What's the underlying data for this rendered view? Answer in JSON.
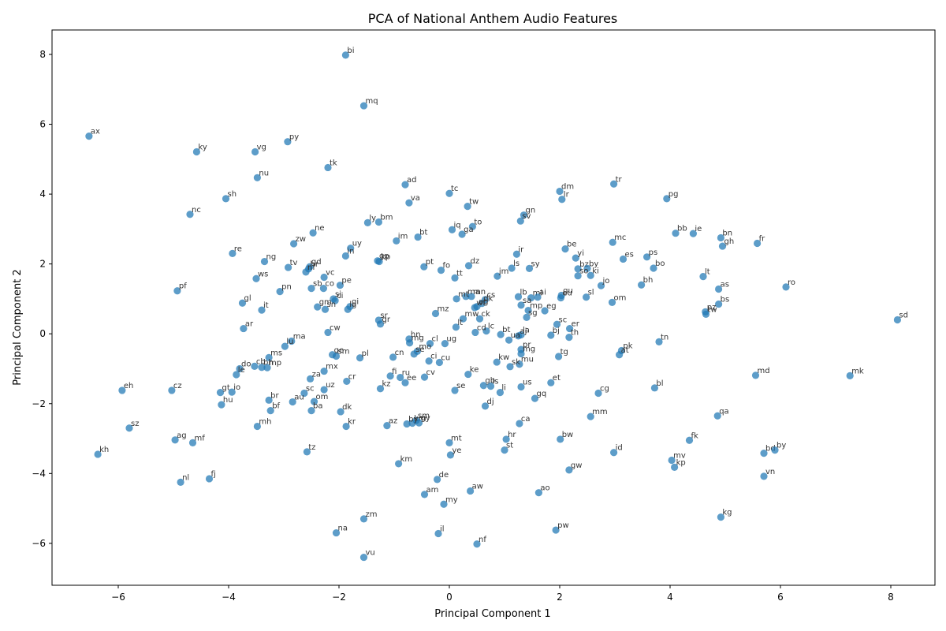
{
  "chart_data": {
    "type": "scatter",
    "title": "PCA of National Anthem Audio Features",
    "xlabel": "Principal Component 1",
    "ylabel": "Principal Component 2",
    "xlim": [
      -7.2,
      8.8
    ],
    "ylim": [
      -7.2,
      8.7
    ],
    "xticks": [
      -6,
      -4,
      -2,
      0,
      2,
      4,
      6,
      8
    ],
    "yticks": [
      -6,
      -4,
      -2,
      0,
      2,
      4,
      6,
      8
    ],
    "grid": false,
    "point_color": "#1f77b4",
    "points": [
      {
        "label": "bi",
        "x": -1.88,
        "y": 7.98
      },
      {
        "label": "mq",
        "x": -1.55,
        "y": 6.53
      },
      {
        "label": "ax",
        "x": -6.53,
        "y": 5.66
      },
      {
        "label": "ky",
        "x": -4.58,
        "y": 5.21
      },
      {
        "label": "vg",
        "x": -3.52,
        "y": 5.21
      },
      {
        "label": "py",
        "x": -2.93,
        "y": 5.5
      },
      {
        "label": "tk",
        "x": -2.2,
        "y": 4.76
      },
      {
        "label": "nu",
        "x": -3.48,
        "y": 4.47
      },
      {
        "label": "ad",
        "x": -0.8,
        "y": 4.27
      },
      {
        "label": "tc",
        "x": 0,
        "y": 4.02
      },
      {
        "label": "dm",
        "x": 2,
        "y": 4.08
      },
      {
        "label": "tr",
        "x": 2.98,
        "y": 4.29
      },
      {
        "label": "pg",
        "x": 3.94,
        "y": 3.87
      },
      {
        "label": "sh",
        "x": -4.05,
        "y": 3.87
      },
      {
        "label": "nc",
        "x": -4.7,
        "y": 3.42
      },
      {
        "label": "va",
        "x": -0.73,
        "y": 3.75
      },
      {
        "label": "tw",
        "x": 0.33,
        "y": 3.65
      },
      {
        "label": "lr",
        "x": 2.04,
        "y": 3.85
      },
      {
        "label": "gn",
        "x": 1.35,
        "y": 3.4
      },
      {
        "label": "sv",
        "x": 1.29,
        "y": 3.23
      },
      {
        "label": "ly",
        "x": -1.48,
        "y": 3.18
      },
      {
        "label": "bm",
        "x": -1.28,
        "y": 3.2
      },
      {
        "label": "iq",
        "x": 0.05,
        "y": 2.98
      },
      {
        "label": "to",
        "x": 0.42,
        "y": 3.07
      },
      {
        "label": "ga",
        "x": 0.23,
        "y": 2.85
      },
      {
        "label": "ne",
        "x": -2.47,
        "y": 2.89
      },
      {
        "label": "bt",
        "x": -0.57,
        "y": 2.77
      },
      {
        "label": "im",
        "x": -0.96,
        "y": 2.66
      },
      {
        "label": "bb",
        "x": 4.1,
        "y": 2.88
      },
      {
        "label": "ie",
        "x": 4.42,
        "y": 2.87
      },
      {
        "label": "bn",
        "x": 4.92,
        "y": 2.75
      },
      {
        "label": "gh",
        "x": 4.95,
        "y": 2.51
      },
      {
        "label": "fr",
        "x": 5.58,
        "y": 2.59
      },
      {
        "label": "mc",
        "x": 2.96,
        "y": 2.62
      },
      {
        "label": "zw",
        "x": -2.82,
        "y": 2.58
      },
      {
        "label": "uy",
        "x": -1.79,
        "y": 2.45
      },
      {
        "label": "be",
        "x": 2.1,
        "y": 2.43
      },
      {
        "label": "re",
        "x": -3.93,
        "y": 2.3
      },
      {
        "label": "ir",
        "x": 1.22,
        "y": 2.28
      },
      {
        "label": "in",
        "x": -1.88,
        "y": 2.23
      },
      {
        "label": "yi",
        "x": 2.29,
        "y": 2.17
      },
      {
        "label": "es",
        "x": 3.15,
        "y": 2.14
      },
      {
        "label": "ps",
        "x": 3.58,
        "y": 2.2
      },
      {
        "label": "ng",
        "x": -3.35,
        "y": 2.07
      },
      {
        "label": "kp",
        "x": -1.27,
        "y": 2.07
      },
      {
        "label": "gp",
        "x": -1.3,
        "y": 2.09
      },
      {
        "label": "pt",
        "x": -0.46,
        "y": 1.92
      },
      {
        "label": "dz",
        "x": 0.35,
        "y": 1.95
      },
      {
        "label": "gd",
        "x": -2.53,
        "y": 1.92
      },
      {
        "label": "tv",
        "x": -2.92,
        "y": 1.9
      },
      {
        "label": "hr",
        "x": -2.55,
        "y": 1.86
      },
      {
        "label": "fo",
        "x": -0.15,
        "y": 1.82
      },
      {
        "label": "ls",
        "x": 1.13,
        "y": 1.88
      },
      {
        "label": "sy",
        "x": 1.45,
        "y": 1.87
      },
      {
        "label": "bz",
        "x": 2.33,
        "y": 1.86
      },
      {
        "label": "by",
        "x": 2.5,
        "y": 1.87
      },
      {
        "label": "bo",
        "x": 3.7,
        "y": 1.88
      },
      {
        "label": "nf",
        "x": -2.6,
        "y": 1.77
      },
      {
        "label": "jm",
        "x": 0.87,
        "y": 1.65
      },
      {
        "label": "so",
        "x": 2.33,
        "y": 1.66
      },
      {
        "label": "ki",
        "x": 2.56,
        "y": 1.67
      },
      {
        "label": "vc",
        "x": -2.27,
        "y": 1.62
      },
      {
        "label": "tt",
        "x": 0.1,
        "y": 1.6
      },
      {
        "label": "ws",
        "x": -3.5,
        "y": 1.58
      },
      {
        "label": "lt",
        "x": 4.6,
        "y": 1.64
      },
      {
        "label": "bh",
        "x": 3.48,
        "y": 1.4
      },
      {
        "label": "jo",
        "x": 2.75,
        "y": 1.38
      },
      {
        "label": "pe",
        "x": -1.98,
        "y": 1.39
      },
      {
        "label": "ro",
        "x": 6.1,
        "y": 1.34
      },
      {
        "label": "sb",
        "x": -2.5,
        "y": 1.3
      },
      {
        "label": "co",
        "x": -2.28,
        "y": 1.3
      },
      {
        "label": "as",
        "x": 4.88,
        "y": 1.28
      },
      {
        "label": "pf",
        "x": -4.93,
        "y": 1.23
      },
      {
        "label": "pn",
        "x": -3.07,
        "y": 1.21
      },
      {
        "label": "mn",
        "x": 0.4,
        "y": 1.07
      },
      {
        "label": "ma",
        "x": 0.3,
        "y": 1.07
      },
      {
        "label": "lb",
        "x": 1.25,
        "y": 1.06
      },
      {
        "label": "gu",
        "x": 2.03,
        "y": 1.1
      },
      {
        "label": "eu",
        "x": 2.02,
        "y": 1.03
      },
      {
        "label": "sl",
        "x": 2.48,
        "y": 1.05
      },
      {
        "label": "mt",
        "x": 0.13,
        "y": 1
      },
      {
        "label": "ml",
        "x": 1.48,
        "y": 1.03
      },
      {
        "label": "ai",
        "x": 1.6,
        "y": 1.05
      },
      {
        "label": "sj",
        "x": -2.1,
        "y": 1
      },
      {
        "label": "ci",
        "x": -2.07,
        "y": 0.95
      },
      {
        "label": "cs",
        "x": 0.65,
        "y": 0.98
      },
      {
        "label": "om",
        "x": 2.95,
        "y": 0.9
      },
      {
        "label": "gl",
        "x": -3.75,
        "y": 0.88
      },
      {
        "label": "bs",
        "x": 4.88,
        "y": 0.85
      },
      {
        "label": "dk",
        "x": 0.59,
        "y": 0.87
      },
      {
        "label": "ag",
        "x": 0.5,
        "y": 0.78
      },
      {
        "label": "wf",
        "x": 0.46,
        "y": 0.75
      },
      {
        "label": "sa",
        "x": 1.3,
        "y": 0.82
      },
      {
        "label": "gm",
        "x": -2.39,
        "y": 0.77
      },
      {
        "label": "gi",
        "x": -1.8,
        "y": 0.78
      },
      {
        "label": "sn",
        "x": -2.25,
        "y": 0.7
      },
      {
        "label": "lg",
        "x": -1.84,
        "y": 0.7
      },
      {
        "label": "it",
        "x": -3.4,
        "y": 0.68
      },
      {
        "label": "mp",
        "x": 1.43,
        "y": 0.67
      },
      {
        "label": "eg",
        "x": 1.73,
        "y": 0.66
      },
      {
        "label": "pz",
        "x": 4.64,
        "y": 0.63
      },
      {
        "label": "tw2",
        "x": 4.65,
        "y": 0.56
      },
      {
        "label": "mz",
        "x": -0.25,
        "y": 0.58
      },
      {
        "label": "sg",
        "x": 1.4,
        "y": 0.47
      },
      {
        "label": "mw",
        "x": 0.25,
        "y": 0.43
      },
      {
        "label": "ck",
        "x": 0.55,
        "y": 0.43
      },
      {
        "label": "sd",
        "x": 8.12,
        "y": 0.4
      },
      {
        "label": "sr",
        "x": -1.28,
        "y": 0.39
      },
      {
        "label": "gr",
        "x": -1.25,
        "y": 0.28
      },
      {
        "label": "sc",
        "x": 1.95,
        "y": 0.27
      },
      {
        "label": "lt2",
        "x": 0.12,
        "y": 0.19
      },
      {
        "label": "ar",
        "x": -3.73,
        "y": 0.15
      },
      {
        "label": "er",
        "x": 2.18,
        "y": 0.15
      },
      {
        "label": "lc",
        "x": 0.67,
        "y": 0.08
      },
      {
        "label": "cw",
        "x": -2.2,
        "y": 0.04
      },
      {
        "label": "cd",
        "x": 0.47,
        "y": 0.04
      },
      {
        "label": "bt2",
        "x": 0.93,
        "y": -0.02
      },
      {
        "label": "la",
        "x": 1.3,
        "y": -0.03
      },
      {
        "label": "aj",
        "x": 1.25,
        "y": -0.06
      },
      {
        "label": "bj",
        "x": 1.84,
        "y": -0.04
      },
      {
        "label": "th",
        "x": 2.17,
        "y": -0.1
      },
      {
        "label": "ua",
        "x": 1.08,
        "y": -0.18
      },
      {
        "label": "hn",
        "x": -0.73,
        "y": -0.15
      },
      {
        "label": "tn",
        "x": 3.8,
        "y": -0.23
      },
      {
        "label": "ma2",
        "x": -2.86,
        "y": -0.21
      },
      {
        "label": "mg",
        "x": -0.72,
        "y": -0.26
      },
      {
        "label": "cl",
        "x": -0.35,
        "y": -0.28
      },
      {
        "label": "ug",
        "x": -0.08,
        "y": -0.28
      },
      {
        "label": "lu",
        "x": -2.98,
        "y": -0.36
      },
      {
        "label": "pr",
        "x": 1.3,
        "y": -0.45
      },
      {
        "label": "pk",
        "x": 3.12,
        "y": -0.48
      },
      {
        "label": "mo",
        "x": -0.58,
        "y": -0.5
      },
      {
        "label": "mg2",
        "x": 1.3,
        "y": -0.57
      },
      {
        "label": "at",
        "x": 3.08,
        "y": -0.6
      },
      {
        "label": "ge",
        "x": -2.12,
        "y": -0.6
      },
      {
        "label": "sm2",
        "x": -2.05,
        "y": -0.64
      },
      {
        "label": "se2",
        "x": -0.64,
        "y": -0.58
      },
      {
        "label": "cn",
        "x": -1.02,
        "y": -0.67
      },
      {
        "label": "pl",
        "x": -1.62,
        "y": -0.69
      },
      {
        "label": "tg",
        "x": 1.98,
        "y": -0.65
      },
      {
        "label": "ms",
        "x": -3.27,
        "y": -0.68
      },
      {
        "label": "ci2",
        "x": -0.37,
        "y": -0.78
      },
      {
        "label": "cu",
        "x": -0.18,
        "y": -0.82
      },
      {
        "label": "kw",
        "x": 0.86,
        "y": -0.81
      },
      {
        "label": "mu",
        "x": 1.27,
        "y": -0.87
      },
      {
        "label": "sk",
        "x": 1.1,
        "y": -0.94
      },
      {
        "label": "cb",
        "x": -3.53,
        "y": -0.93
      },
      {
        "label": "bh2",
        "x": -3.4,
        "y": -0.96
      },
      {
        "label": "mp2",
        "x": -3.3,
        "y": -0.97
      },
      {
        "label": "do",
        "x": -3.8,
        "y": -1
      },
      {
        "label": "mx",
        "x": -2.27,
        "y": -1.07
      },
      {
        "label": "le",
        "x": -3.86,
        "y": -1.17
      },
      {
        "label": "md",
        "x": 5.55,
        "y": -1.19
      },
      {
        "label": "mk",
        "x": 7.26,
        "y": -1.2
      },
      {
        "label": "ke",
        "x": 0.34,
        "y": -1.16
      },
      {
        "label": "fi",
        "x": -1.07,
        "y": -1.21
      },
      {
        "label": "ru",
        "x": -0.89,
        "y": -1.25
      },
      {
        "label": "cv",
        "x": -0.45,
        "y": -1.24
      },
      {
        "label": "za",
        "x": -2.52,
        "y": -1.29
      },
      {
        "label": "cr",
        "x": -1.86,
        "y": -1.36
      },
      {
        "label": "ee",
        "x": -0.8,
        "y": -1.4
      },
      {
        "label": "et",
        "x": 1.84,
        "y": -1.4
      },
      {
        "label": "gb",
        "x": 0.62,
        "y": -1.48
      },
      {
        "label": "ls2",
        "x": 0.75,
        "y": -1.5
      },
      {
        "label": "us",
        "x": 1.3,
        "y": -1.52
      },
      {
        "label": "bl",
        "x": 3.72,
        "y": -1.55
      },
      {
        "label": "kz",
        "x": -1.25,
        "y": -1.57
      },
      {
        "label": "uz",
        "x": -2.27,
        "y": -1.6
      },
      {
        "label": "se",
        "x": 0.1,
        "y": -1.62
      },
      {
        "label": "eh",
        "x": -5.93,
        "y": -1.62
      },
      {
        "label": "cz",
        "x": -5.03,
        "y": -1.62
      },
      {
        "label": "li",
        "x": 0.92,
        "y": -1.68
      },
      {
        "label": "gt",
        "x": -4.15,
        "y": -1.68
      },
      {
        "label": "io",
        "x": -3.94,
        "y": -1.67
      },
      {
        "label": "cg",
        "x": 2.7,
        "y": -1.7
      },
      {
        "label": "sc2",
        "x": -2.63,
        "y": -1.7
      },
      {
        "label": "gq",
        "x": 1.55,
        "y": -1.85
      },
      {
        "label": "br",
        "x": -3.27,
        "y": -1.9
      },
      {
        "label": "au",
        "x": -2.84,
        "y": -1.95
      },
      {
        "label": "om2",
        "x": -2.45,
        "y": -1.94
      },
      {
        "label": "hu",
        "x": -4.13,
        "y": -2.03
      },
      {
        "label": "dj",
        "x": 0.65,
        "y": -2.07
      },
      {
        "label": "bf",
        "x": -3.24,
        "y": -2.2
      },
      {
        "label": "ba",
        "x": -2.5,
        "y": -2.2
      },
      {
        "label": "dk2",
        "x": -1.97,
        "y": -2.23
      },
      {
        "label": "qa",
        "x": 4.86,
        "y": -2.35
      },
      {
        "label": "mm",
        "x": 2.56,
        "y": -2.37
      },
      {
        "label": "sm",
        "x": -0.6,
        "y": -2.48
      },
      {
        "label": "km2",
        "x": -0.67,
        "y": -2.56
      },
      {
        "label": "gy",
        "x": -0.55,
        "y": -2.55
      },
      {
        "label": "ca",
        "x": 1.27,
        "y": -2.57
      },
      {
        "label": "sz",
        "x": -5.8,
        "y": -2.7
      },
      {
        "label": "mh",
        "x": -3.48,
        "y": -2.65
      },
      {
        "label": "kr",
        "x": -1.87,
        "y": -2.65
      },
      {
        "label": "az",
        "x": -1.13,
        "y": -2.63
      },
      {
        "label": "by2",
        "x": -0.77,
        "y": -2.58
      },
      {
        "label": "ag2",
        "x": -4.97,
        "y": -3.04
      },
      {
        "label": "mf",
        "x": -4.65,
        "y": -3.12
      },
      {
        "label": "hr2",
        "x": 1.03,
        "y": -3.02
      },
      {
        "label": "bw",
        "x": 2.01,
        "y": -3.02
      },
      {
        "label": "fk",
        "x": 4.35,
        "y": -3.05
      },
      {
        "label": "mt2",
        "x": 0,
        "y": -3.12
      },
      {
        "label": "kh",
        "x": -6.37,
        "y": -3.45
      },
      {
        "label": "tz",
        "x": -2.58,
        "y": -3.38
      },
      {
        "label": "st",
        "x": 1,
        "y": -3.33
      },
      {
        "label": "id",
        "x": 2.98,
        "y": -3.4
      },
      {
        "label": "ye",
        "x": 0.02,
        "y": -3.47
      },
      {
        "label": "bd",
        "x": 5.7,
        "y": -3.42
      },
      {
        "label": "by3",
        "x": 5.9,
        "y": -3.33
      },
      {
        "label": "mv",
        "x": 4.03,
        "y": -3.62
      },
      {
        "label": "km",
        "x": -0.92,
        "y": -3.72
      },
      {
        "label": "kp2",
        "x": 4.08,
        "y": -3.82
      },
      {
        "label": "gw",
        "x": 2.17,
        "y": -3.9
      },
      {
        "label": "vn",
        "x": 5.7,
        "y": -4.08
      },
      {
        "label": "fj",
        "x": -4.35,
        "y": -4.15
      },
      {
        "label": "nl",
        "x": -4.87,
        "y": -4.25
      },
      {
        "label": "de",
        "x": -0.22,
        "y": -4.17
      },
      {
        "label": "aw",
        "x": 0.38,
        "y": -4.5
      },
      {
        "label": "ao",
        "x": 1.62,
        "y": -4.55
      },
      {
        "label": "am",
        "x": -0.45,
        "y": -4.6
      },
      {
        "label": "my",
        "x": -0.1,
        "y": -4.88
      },
      {
        "label": "kg",
        "x": 4.92,
        "y": -5.25
      },
      {
        "label": "zm",
        "x": -1.55,
        "y": -5.3
      },
      {
        "label": "pw",
        "x": 1.93,
        "y": -5.62
      },
      {
        "label": "na",
        "x": -2.05,
        "y": -5.7
      },
      {
        "label": "il",
        "x": -0.2,
        "y": -5.72
      },
      {
        "label": "nf2",
        "x": 0.5,
        "y": -6.02
      },
      {
        "label": "vu",
        "x": -1.55,
        "y": -6.4
      }
    ]
  }
}
